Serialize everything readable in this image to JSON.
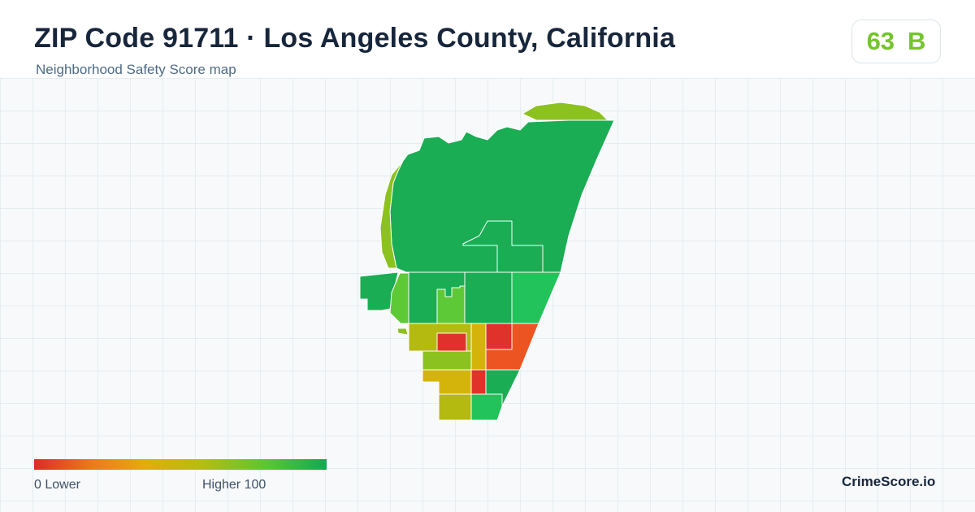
{
  "header": {
    "title": "ZIP Code 91711 · Los Angeles County, California",
    "subtitle": "Neighborhood Safety Score map"
  },
  "score": {
    "value": "63",
    "grade": "B",
    "color": "#74c52a"
  },
  "legend": {
    "min_label": "0  Lower",
    "max_label": "Higher  100",
    "color_low": "#df2a28",
    "color_high": "#13a852"
  },
  "brand": "CrimeScore.io",
  "map_colors": {
    "dark_green": "#1aad54",
    "green": "#22c35a",
    "light_green": "#5ec936",
    "yellow_green": "#8cc21f",
    "olive": "#b4ba10",
    "mustard": "#d4b40b",
    "orange": "#ec5522",
    "red": "#e0322a"
  }
}
